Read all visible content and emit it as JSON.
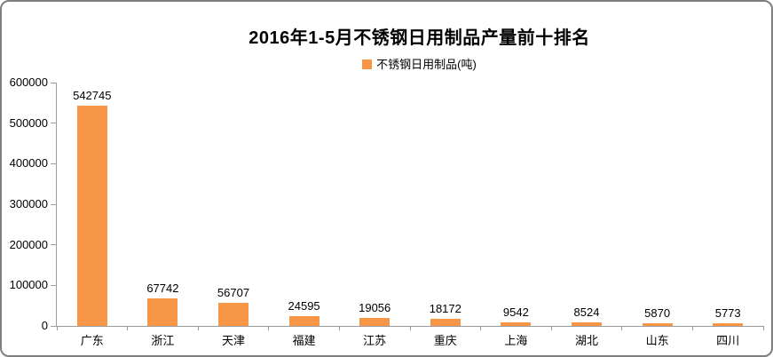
{
  "chart_data": {
    "type": "bar",
    "title": "2016年1-5月不锈钢日用制品产量前十排名",
    "legend": [
      "不锈钢日用制品(吨)"
    ],
    "legend_position": "top-center",
    "categories": [
      "广东",
      "浙江",
      "天津",
      "福建",
      "江苏",
      "重庆",
      "上海",
      "湖北",
      "山东",
      "四川"
    ],
    "series": [
      {
        "name": "不锈钢日用制品(吨)",
        "values": [
          542745,
          67742,
          56707,
          24595,
          19056,
          18172,
          9542,
          8524,
          5870,
          5773
        ]
      }
    ],
    "data_labels_shown": true,
    "xlabel": "",
    "ylabel": "",
    "ylim": [
      0,
      600000
    ],
    "ytick_step": 100000,
    "ytick_labels": [
      "0",
      "100000",
      "200000",
      "300000",
      "400000",
      "500000",
      "600000"
    ],
    "grid": false,
    "colors": {
      "bar": "#F79646",
      "axis": "#9B9B9B",
      "text": "#000000",
      "background": "#FFFFFF",
      "frame_border": "#7F7F7F"
    }
  }
}
